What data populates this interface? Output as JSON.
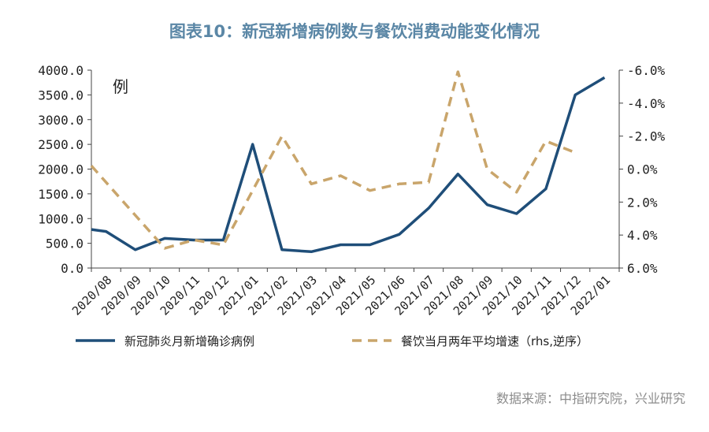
{
  "title": "图表10：新冠新增病例数与餐饮消费动能变化情况",
  "unit_label": "例",
  "source": "数据来源：中指研究院，兴业研究",
  "colors": {
    "primary": "#1f4e79",
    "secondary": "#c9a56b"
  },
  "chart_data": {
    "type": "line",
    "categories": [
      "2020/08",
      "2020/09",
      "2020/10",
      "2020/11",
      "2020/12",
      "2021/01",
      "2021/02",
      "2021/03",
      "2021/04",
      "2021/05",
      "2021/06",
      "2021/07",
      "2021/08",
      "2021/09",
      "2021/10",
      "2021/11",
      "2021/12",
      "2022/01"
    ],
    "y_left": {
      "min": 0,
      "max": 4000,
      "ticks": [
        0,
        500,
        1000,
        1500,
        2000,
        2500,
        3000,
        3500,
        4000
      ],
      "tick_labels": [
        "0.0",
        "500.0",
        "1000.0",
        "1500.0",
        "2000.0",
        "2500.0",
        "3000.0",
        "3500.0",
        "4000.0"
      ]
    },
    "y_right": {
      "top": -6.0,
      "bottom": 6.0,
      "inverted": true,
      "ticks": [
        -6,
        -4,
        -2,
        0,
        2,
        4,
        6
      ],
      "tick_labels": [
        "-6.0%",
        "-4.0%",
        "-2.0%",
        "0.0%",
        "2.0%",
        "4.0%",
        "6.0%"
      ]
    },
    "series": [
      {
        "name": "新冠肺炎月新增确诊病例",
        "axis": "left",
        "style": "solid",
        "color": "#1f4e79",
        "points": [
          {
            "x": 0.0,
            "y": 780
          },
          {
            "x": 0.5,
            "y": 740
          },
          {
            "x": 1.5,
            "y": 370
          },
          {
            "x": 2.5,
            "y": 600
          },
          {
            "x": 3.5,
            "y": 565
          },
          {
            "x": 4.5,
            "y": 565
          },
          {
            "x": 5.5,
            "y": 2500
          },
          {
            "x": 6.5,
            "y": 370
          },
          {
            "x": 7.5,
            "y": 330
          },
          {
            "x": 8.5,
            "y": 470
          },
          {
            "x": 9.5,
            "y": 470
          },
          {
            "x": 10.5,
            "y": 680
          },
          {
            "x": 11.5,
            "y": 1210
          },
          {
            "x": 12.5,
            "y": 1900
          },
          {
            "x": 13.5,
            "y": 1280
          },
          {
            "x": 14.5,
            "y": 1100
          },
          {
            "x": 15.5,
            "y": 1600
          },
          {
            "x": 16.5,
            "y": 3500
          },
          {
            "x": 17.5,
            "y": 3850
          }
        ]
      },
      {
        "name": "餐饮当月两年平均增速（rhs,逆序）",
        "axis": "right",
        "style": "dashed",
        "color": "#c9a56b",
        "points": [
          {
            "x": 0.0,
            "y": -0.2
          },
          {
            "x": 1.5,
            "y": 2.8
          },
          {
            "x": 2.5,
            "y": 4.8
          },
          {
            "x": 3.5,
            "y": 4.3
          },
          {
            "x": 4.5,
            "y": 4.6
          },
          {
            "x": 6.5,
            "y": -2.0
          },
          {
            "x": 7.5,
            "y": 0.9
          },
          {
            "x": 8.5,
            "y": 0.4
          },
          {
            "x": 9.5,
            "y": 1.3
          },
          {
            "x": 10.5,
            "y": 0.9
          },
          {
            "x": 11.5,
            "y": 0.8
          },
          {
            "x": 12.5,
            "y": -5.9
          },
          {
            "x": 13.5,
            "y": 0.0
          },
          {
            "x": 14.5,
            "y": 1.4
          },
          {
            "x": 15.5,
            "y": -1.7
          },
          {
            "x": 16.5,
            "y": -1.0
          }
        ]
      }
    ],
    "legend": {
      "placement": "bottom"
    }
  }
}
